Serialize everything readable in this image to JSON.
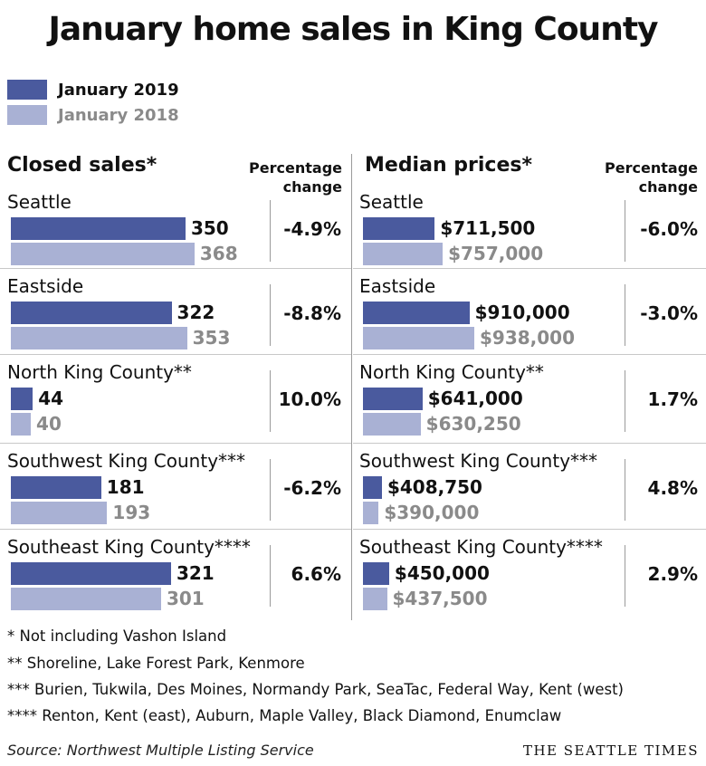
{
  "title": "January home sales in King County",
  "legend": [
    {
      "label": "January 2019",
      "color": "#4a5a9e"
    },
    {
      "label": "January 2018",
      "color": "#a9b1d4"
    }
  ],
  "colors": {
    "cur": "#4a5a9e",
    "prev": "#a9b1d4"
  },
  "pct_heading": "Percentage change",
  "chart_data": [
    {
      "type": "bar",
      "title": "Closed sales*",
      "categories": [
        "Seattle",
        "Eastside",
        "North King County**",
        "Southwest King County***",
        "Southeast King County****"
      ],
      "series": [
        {
          "name": "January 2019",
          "values": [
            350,
            322,
            44,
            181,
            321
          ],
          "labels": [
            "350",
            "322",
            "44",
            "181",
            "321"
          ]
        },
        {
          "name": "January 2018",
          "values": [
            368,
            353,
            40,
            193,
            301
          ],
          "labels": [
            "368",
            "353",
            "40",
            "193",
            "301"
          ]
        }
      ],
      "percentage_change": [
        "-4.9%",
        "-8.8%",
        "10.0%",
        "-6.2%",
        "6.6%"
      ]
    },
    {
      "type": "bar",
      "title": "Median prices*",
      "categories": [
        "Seattle",
        "Eastside",
        "North King County**",
        "Southwest King County***",
        "Southeast King County****"
      ],
      "series": [
        {
          "name": "January 2019",
          "values": [
            711500,
            910000,
            641000,
            408750,
            450000
          ],
          "labels": [
            "$711,500",
            "$910,000",
            "$641,000",
            "$408,750",
            "$450,000"
          ]
        },
        {
          "name": "January 2018",
          "values": [
            757000,
            938000,
            630250,
            390000,
            437500
          ],
          "labels": [
            "$757,000",
            "$938,000",
            "$630,250",
            "$390,000",
            "$437,500"
          ]
        }
      ],
      "percentage_change": [
        "-6.0%",
        "-3.0%",
        "1.7%",
        "4.8%",
        "2.9%"
      ]
    }
  ],
  "footnotes": [
    "* Not including Vashon Island",
    "** Shoreline, Lake Forest Park, Kenmore",
    "*** Burien, Tukwila, Des Moines, Normandy Park, SeaTac, Federal Way, Kent (west)",
    "**** Renton, Kent (east), Auburn, Maple Valley, Black Diamond, Enumclaw"
  ],
  "source": "Source: Northwest Multiple Listing Service",
  "brand": "THE SEATTLE TIMES"
}
